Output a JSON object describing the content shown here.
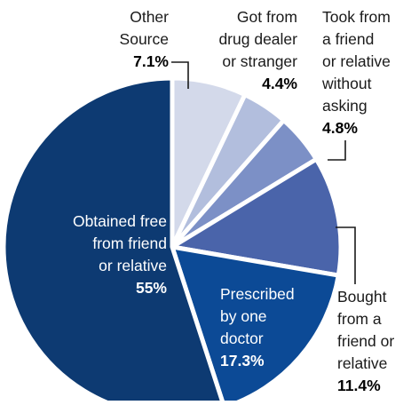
{
  "chart_data": {
    "type": "pie",
    "title": "",
    "start": "12 o'clock, clockwise",
    "slices": [
      {
        "lines": [
          "Other",
          "Source"
        ],
        "value": 7.1,
        "value_label": "7.1%",
        "color": "#d3d9ea"
      },
      {
        "lines": [
          "Got from",
          "drug dealer",
          "or stranger"
        ],
        "value": 4.4,
        "value_label": "4.4%",
        "color": "#b2bedd"
      },
      {
        "lines": [
          "Took from",
          "a friend",
          "or relative",
          "without",
          "asking"
        ],
        "value": 4.8,
        "value_label": "4.8%",
        "color": "#7c90c6"
      },
      {
        "lines": [
          "Bought",
          "from a",
          "friend or",
          "relative"
        ],
        "value": 11.4,
        "value_label": "11.4%",
        "color": "#4a64aa"
      },
      {
        "lines": [
          "Prescribed",
          "by one",
          "doctor"
        ],
        "value": 17.3,
        "value_label": "17.3%",
        "color": "#0c4a96"
      },
      {
        "lines": [
          "Obtained free",
          "from friend",
          "or relative"
        ],
        "value": 55,
        "value_label": "55%",
        "color": "#0d3a72"
      }
    ]
  }
}
